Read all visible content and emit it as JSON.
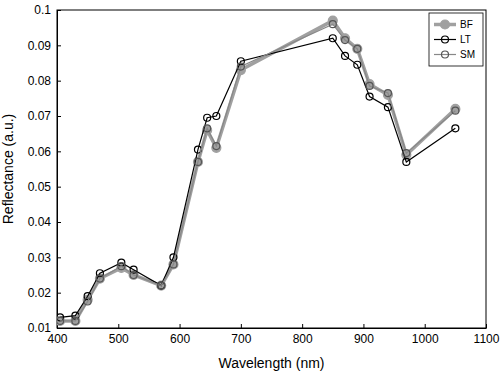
{
  "chart_data": {
    "type": "line",
    "x_label": "Wavelength (nm)",
    "y_label": "Reflectance (a.u.)",
    "x": [
      405,
      430,
      450,
      470,
      505,
      525,
      570,
      590,
      630,
      645,
      660,
      700,
      850,
      870,
      890,
      910,
      940,
      970,
      1050
    ],
    "series": [
      {
        "name": "BF",
        "color": "#a0a0a0",
        "marker": "filled_circle",
        "line_style": "thick",
        "values": [
          0.012,
          0.012,
          0.018,
          0.024,
          0.027,
          0.025,
          0.022,
          0.028,
          0.057,
          0.066,
          0.061,
          0.083,
          0.097,
          0.092,
          0.089,
          0.079,
          0.076,
          0.059,
          0.072
        ]
      },
      {
        "name": "LT",
        "color": "#000000",
        "marker": "circle",
        "line_style": "solid",
        "values": [
          0.013,
          0.0135,
          0.019,
          0.0255,
          0.0285,
          0.0265,
          0.022,
          0.03,
          0.0605,
          0.0695,
          0.07,
          0.0855,
          0.092,
          0.087,
          0.0845,
          0.0755,
          0.0725,
          0.057,
          0.0665
        ]
      },
      {
        "name": "SM",
        "color": "#888888",
        "marker": "circle",
        "line_style": "solid",
        "values": [
          0.012,
          0.012,
          0.0175,
          0.024,
          0.0275,
          0.025,
          0.022,
          0.028,
          0.057,
          0.0665,
          0.0615,
          0.084,
          0.096,
          0.0915,
          0.089,
          0.0785,
          0.0765,
          0.0595,
          0.0715
        ]
      }
    ],
    "xlim": [
      400,
      1100
    ],
    "xticks": [
      400,
      500,
      600,
      700,
      800,
      900,
      1000,
      1100
    ],
    "ylim": [
      0.01,
      0.1
    ],
    "yticks": [
      0.01,
      0.02,
      0.03,
      0.04,
      0.05,
      0.06,
      0.07,
      0.08,
      0.09,
      0.1
    ],
    "grid": false,
    "legend": "upper-right"
  }
}
